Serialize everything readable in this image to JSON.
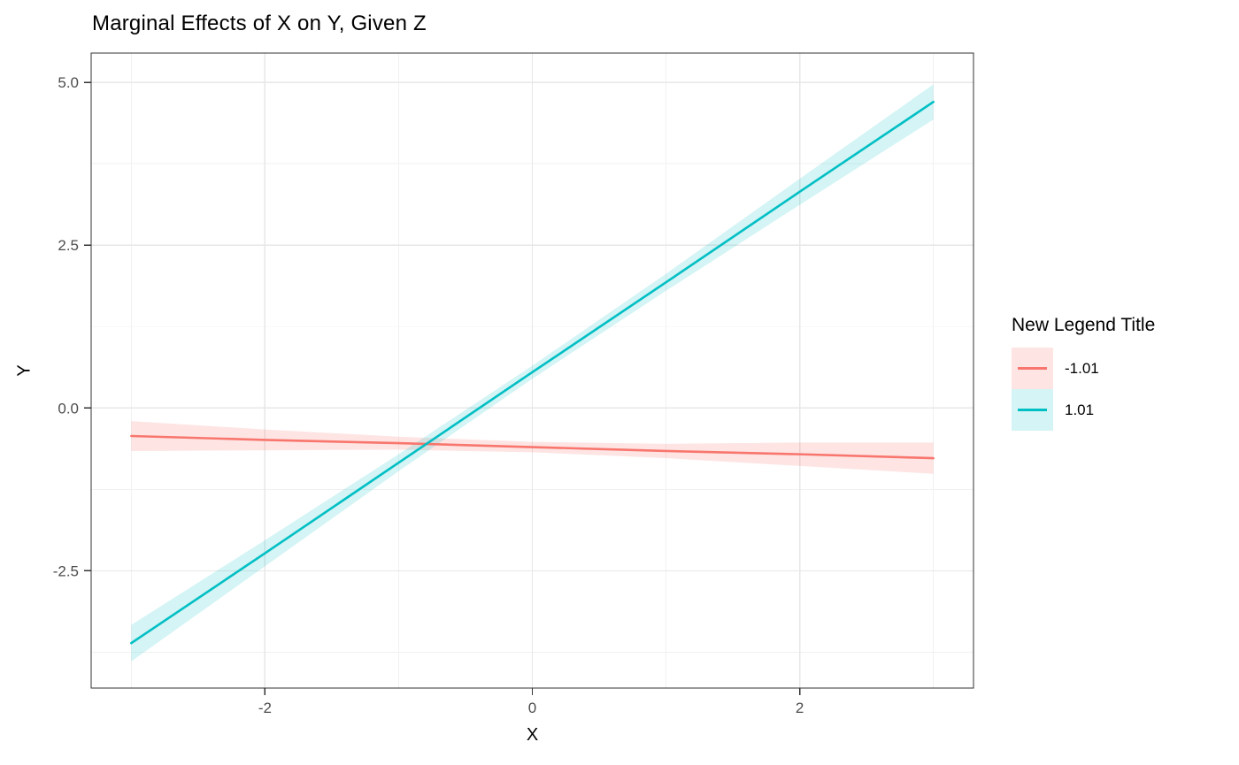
{
  "chart_data": {
    "type": "line",
    "title": "Marginal Effects of X on Y, Given Z",
    "xlabel": "X",
    "ylabel": "Y",
    "xlim": [
      -3.3,
      3.3
    ],
    "ylim": [
      -4.3,
      5.45
    ],
    "x_ticks": [
      -2,
      0,
      2
    ],
    "x_tick_labels": [
      "-2",
      "0",
      "2"
    ],
    "y_ticks": [
      5.0,
      2.5,
      0.0,
      -2.5
    ],
    "y_tick_labels": [
      "5.0",
      "2.5",
      "0.0",
      "-2.5"
    ],
    "x_minor_breaks": [
      -3,
      -1,
      1,
      3
    ],
    "y_minor_breaks": [
      3.75,
      1.25,
      -1.25,
      -3.75
    ],
    "grid": true,
    "legend_position": "right",
    "legend": {
      "title": "New Legend Title",
      "entries": [
        {
          "label": "-1.01",
          "line_color": "#F8766D",
          "fill_color": "rgba(248,118,109,0.19)"
        },
        {
          "label": "1.01",
          "line_color": "#00BFC4",
          "fill_color": "rgba(0,191,196,0.17)"
        }
      ]
    },
    "series": [
      {
        "name": "-1.01",
        "color": "#F8766D",
        "fill": "rgba(248,118,109,0.19)",
        "x": [
          -3,
          -2,
          -1,
          0,
          1,
          2,
          3
        ],
        "y": [
          -0.43,
          -0.49,
          -0.54,
          -0.6,
          -0.66,
          -0.71,
          -0.77
        ],
        "ci_upper": [
          -0.2,
          -0.33,
          -0.44,
          -0.52,
          -0.55,
          -0.53,
          -0.53
        ],
        "ci_lower": [
          -0.66,
          -0.65,
          -0.64,
          -0.68,
          -0.77,
          -0.89,
          -1.01
        ]
      },
      {
        "name": "1.01",
        "color": "#00BFC4",
        "fill": "rgba(0,191,196,0.17)",
        "x": [
          -3,
          -2,
          -1,
          0,
          1,
          2,
          3
        ],
        "y": [
          -3.61,
          -2.23,
          -0.84,
          0.55,
          1.93,
          3.32,
          4.7
        ],
        "ci_upper": [
          -3.33,
          -2.03,
          -0.71,
          0.65,
          2.06,
          3.52,
          4.97
        ],
        "ci_lower": [
          -3.89,
          -2.43,
          -0.97,
          0.45,
          1.8,
          3.12,
          4.43
        ]
      }
    ],
    "style": {
      "grid_major_color": "#E7E7E7",
      "grid_minor_color": "#F1F1F1",
      "panel_border_color": "#333333",
      "tick_color": "#333333",
      "tick_label_color": "#4D4D4D",
      "panel_background": "#FFFFFF"
    }
  }
}
